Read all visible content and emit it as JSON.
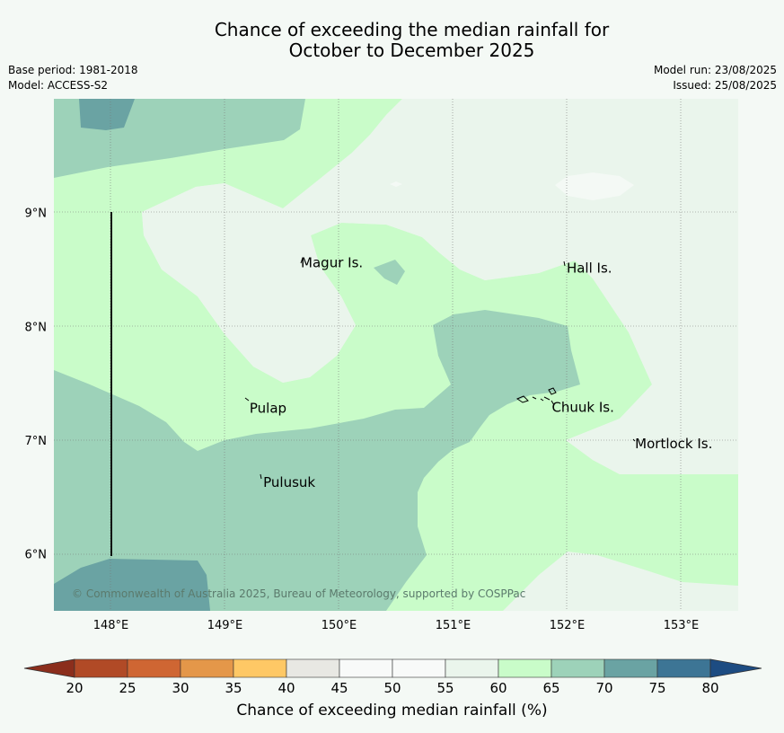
{
  "title_line1": "Chance of exceeding the median rainfall for",
  "title_line2": "October to December 2025",
  "base_period": "Base period: 1981-2018",
  "model": "Model: ACCESS-S2",
  "model_run": "Model run: 23/08/2025",
  "issued": "Issued: 25/08/2025",
  "copyright": "© Commonwealth of Australia 2025, Bureau of Meteorology, supported by COSPPac",
  "map": {
    "lon_range": [
      147.5,
      153.5
    ],
    "lat_range": [
      5.5,
      10.0
    ],
    "lon_ticks": [
      "148°E",
      "149°E",
      "150°E",
      "151°E",
      "152°E",
      "153°E"
    ],
    "lat_ticks": [
      "6°N",
      "7°N",
      "8°N",
      "9°N"
    ],
    "places": [
      {
        "label": "Magur Is.",
        "lon": 149.65,
        "lat": 8.56
      },
      {
        "label": "Hall Is.",
        "lon": 151.98,
        "lat": 8.51
      },
      {
        "label": "Pulap",
        "lon": 149.2,
        "lat": 7.28
      },
      {
        "label": "Chuuk Is.",
        "lon": 151.85,
        "lat": 7.29
      },
      {
        "label": "Mortlock Is.",
        "lon": 152.58,
        "lat": 6.97
      },
      {
        "label": "Pulusuk",
        "lon": 149.32,
        "lat": 6.63
      }
    ],
    "colors": {
      "c40_45": "#e8ece9",
      "c55_60": "#eaf5ec",
      "c50_55": "#f4f9f5",
      "c60_65": "#c9fcc9",
      "c65_70": "#9dd2b9",
      "c70_75": "#6aa3a3"
    }
  },
  "colorbar": {
    "title": "Chance of exceeding median rainfall (%)",
    "ticks": [
      "20",
      "25",
      "30",
      "35",
      "40",
      "45",
      "50",
      "55",
      "60",
      "65",
      "70",
      "75",
      "80"
    ],
    "colors": [
      "#b14a26",
      "#cf6633",
      "#e49749",
      "#fec865",
      "#e8e8e3",
      "#f8faf9",
      "#f8faf9",
      "#eaf5ec",
      "#c9fcc9",
      "#9dd2b9",
      "#6aa3a3",
      "#3d7595"
    ],
    "under_color": "#8b2e1c",
    "over_color": "#1d4c82"
  }
}
